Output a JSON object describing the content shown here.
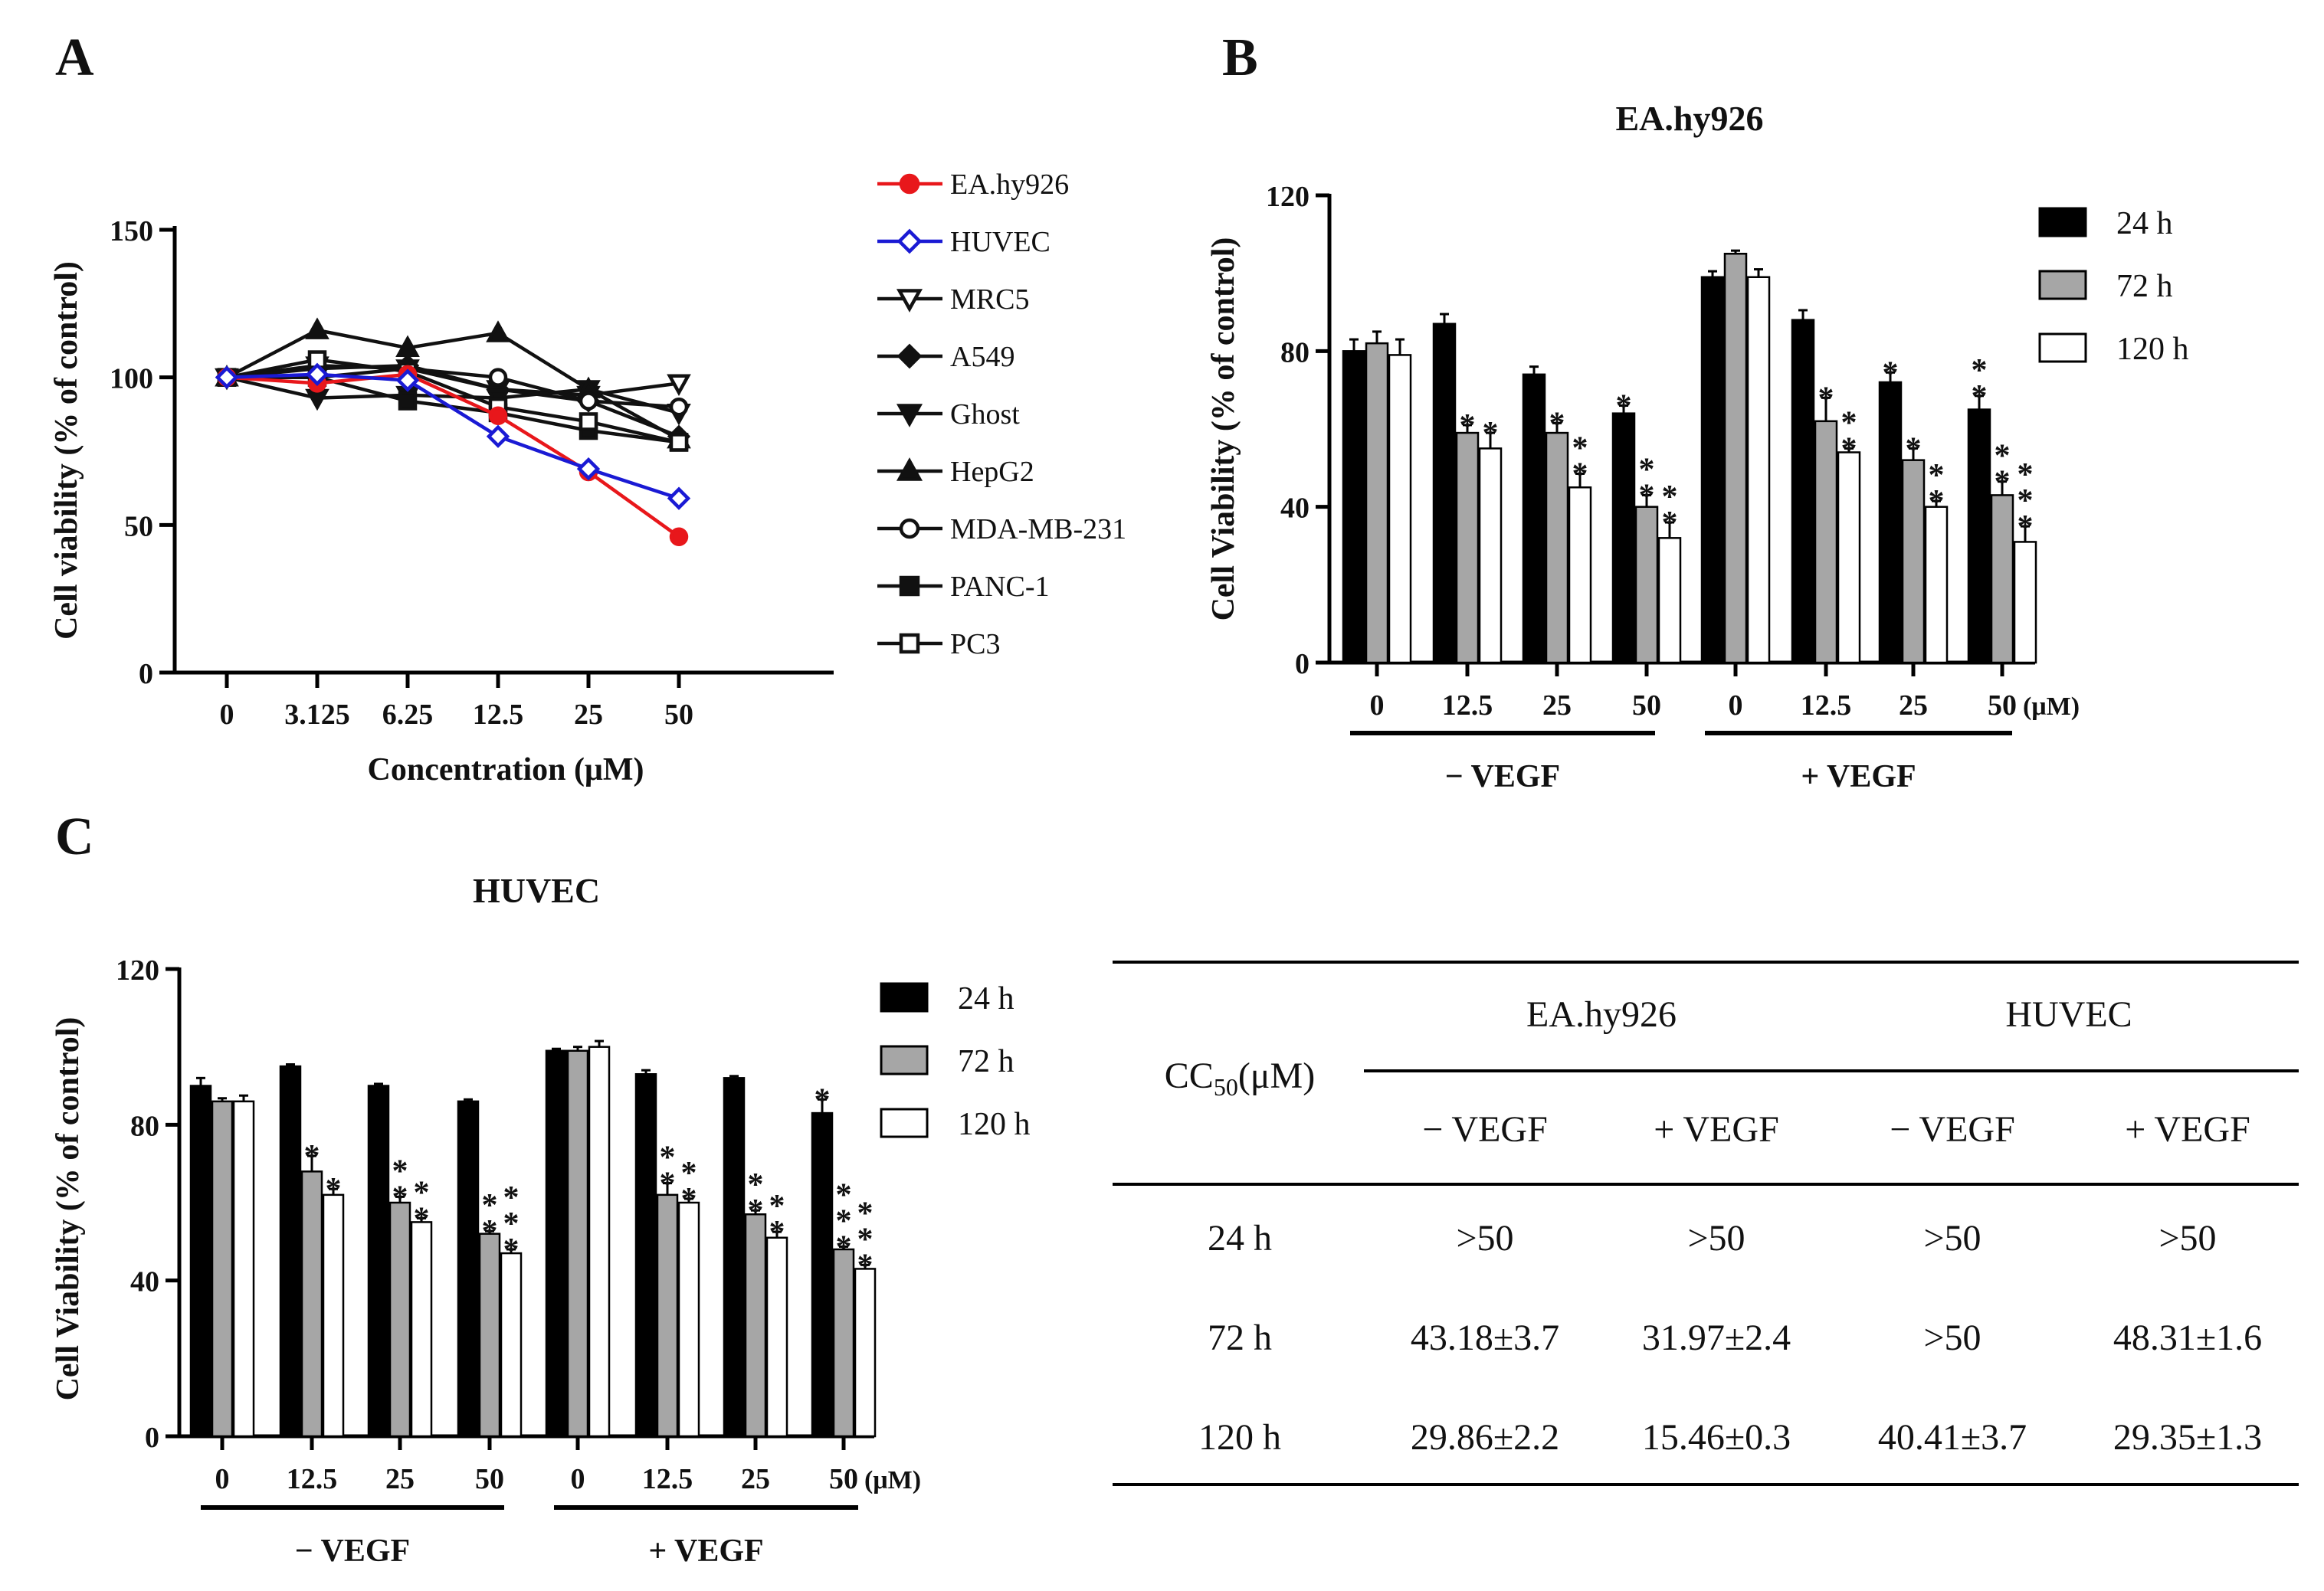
{
  "panels": {
    "A": "A",
    "B": "B",
    "C": "C"
  },
  "chart_data": [
    {
      "id": "A",
      "type": "line",
      "ylabel": "Cell viability (% of control)",
      "xlabel": "Concentration (μM)",
      "categories": [
        "0",
        "3.125",
        "6.25",
        "12.5",
        "25",
        "50"
      ],
      "ylim": [
        0,
        150
      ],
      "yticks": [
        0,
        50,
        100,
        150
      ],
      "series": [
        {
          "name": "EA.hy926",
          "marker": "circle",
          "color": "#e8171b",
          "values": [
            100,
            98,
            101,
            87,
            68,
            46
          ]
        },
        {
          "name": "HUVEC",
          "marker": "diamond-open",
          "color": "#1a1ad4",
          "values": [
            100,
            101,
            99,
            80,
            69,
            59
          ]
        },
        {
          "name": "MRC5",
          "marker": "triangle-down-open",
          "color": "#111111",
          "values": [
            100,
            104,
            103,
            96,
            94,
            98
          ]
        },
        {
          "name": "A549",
          "marker": "diamond",
          "color": "#111111",
          "values": [
            100,
            103,
            104,
            96,
            92,
            80
          ]
        },
        {
          "name": "Ghost",
          "marker": "triangle-down",
          "color": "#111111",
          "values": [
            100,
            93,
            94,
            93,
            96,
            88
          ]
        },
        {
          "name": "HepG2",
          "marker": "triangle",
          "color": "#111111",
          "values": [
            100,
            116,
            110,
            115,
            96,
            79
          ]
        },
        {
          "name": "MDA-MB-231",
          "marker": "circle-open",
          "color": "#111111",
          "values": [
            100,
            100,
            103,
            100,
            92,
            90
          ]
        },
        {
          "name": "PANC-1",
          "marker": "square",
          "color": "#111111",
          "values": [
            100,
            100,
            92,
            88,
            82,
            78
          ]
        },
        {
          "name": "PC3",
          "marker": "square-open",
          "color": "#111111",
          "values": [
            100,
            106,
            102,
            90,
            85,
            78
          ]
        }
      ]
    },
    {
      "id": "B",
      "type": "bar",
      "title": "EA.hy926",
      "ylabel": "Cell Viability (% of control)",
      "ylim": [
        0,
        120
      ],
      "yticks": [
        0,
        40,
        80,
        120
      ],
      "unit_label": "(μM)",
      "categories": [
        "0",
        "12.5",
        "25",
        "50",
        "0",
        "12.5",
        "25",
        "50"
      ],
      "groups": [
        {
          "label": "− VEGF"
        },
        {
          "label": "+ VEGF"
        }
      ],
      "series": [
        {
          "name": "24 h",
          "fill": "#000000",
          "values": [
            80,
            87,
            74,
            64,
            99,
            88,
            72,
            65
          ],
          "errors": [
            3,
            2.5,
            2,
            2,
            1.5,
            2.5,
            2.5,
            3.5
          ],
          "stars": [
            "",
            "",
            "",
            "*",
            "",
            "",
            "*",
            "**"
          ]
        },
        {
          "name": "72 h",
          "fill": "#a6a6a6",
          "values": [
            82,
            59,
            59,
            40,
            105,
            62,
            52,
            43
          ],
          "errors": [
            3,
            2,
            2.5,
            3,
            0.8,
            6,
            3,
            3.5
          ],
          "stars": [
            "",
            "*",
            "*",
            "**",
            "",
            "*",
            "*",
            "**"
          ]
        },
        {
          "name": "120 h",
          "fill": "#ffffff",
          "values": [
            79,
            55,
            45,
            32,
            99,
            54,
            40,
            31
          ],
          "errors": [
            4,
            4,
            3.5,
            4,
            2,
            1,
            1.5,
            4
          ],
          "stars": [
            "",
            "*",
            "**",
            "**",
            "",
            "**",
            "**",
            "***"
          ]
        }
      ]
    },
    {
      "id": "C",
      "type": "bar",
      "title": "HUVEC",
      "ylabel": "Cell Viability (% of control)",
      "ylim": [
        0,
        120
      ],
      "yticks": [
        0,
        40,
        80,
        120
      ],
      "unit_label": "(μM)",
      "categories": [
        "0",
        "12.5",
        "25",
        "50",
        "0",
        "12.5",
        "25",
        "50"
      ],
      "groups": [
        {
          "label": "− VEGF"
        },
        {
          "label": "+ VEGF"
        }
      ],
      "series": [
        {
          "name": "24 h",
          "fill": "#000000",
          "values": [
            90,
            95,
            90,
            86,
            99,
            93,
            92,
            83
          ],
          "errors": [
            2,
            0.5,
            0.5,
            0.5,
            0.5,
            1,
            0.5,
            3.5
          ],
          "stars": [
            "",
            "",
            "",
            "",
            "",
            "",
            "",
            "*"
          ]
        },
        {
          "name": "72 h",
          "fill": "#a6a6a6",
          "values": [
            86,
            68,
            60,
            52,
            99,
            62,
            57,
            48
          ],
          "errors": [
            0.8,
            4,
            1.5,
            0.7,
            1,
            3,
            1,
            0.7
          ],
          "stars": [
            "",
            "*",
            "**",
            "**",
            "",
            "**",
            "**",
            "***"
          ]
        },
        {
          "name": "120 h",
          "fill": "#ffffff",
          "values": [
            86,
            62,
            55,
            47,
            100,
            60,
            51,
            43
          ],
          "errors": [
            1.5,
            1.5,
            1,
            1,
            1.5,
            1,
            1.5,
            1
          ],
          "stars": [
            "",
            "*",
            "**",
            "***",
            "",
            "**",
            "**",
            "***"
          ]
        }
      ]
    },
    {
      "id": "table",
      "type": "table",
      "header_label": "CC50(μM)",
      "cell_lines": [
        "EA.hy926",
        "HUVEC"
      ],
      "conditions": [
        "− VEGF",
        "+ VEGF",
        "− VEGF",
        "+ VEGF"
      ],
      "rows": [
        {
          "time": "24 h",
          "values": [
            ">50",
            ">50",
            ">50",
            ">50"
          ]
        },
        {
          "time": "72 h",
          "values": [
            "43.18±3.7",
            "31.97±2.4",
            ">50",
            "48.31±1.6"
          ]
        },
        {
          "time": "120 h",
          "values": [
            "29.86±2.2",
            "15.46±0.3",
            "40.41±3.7",
            "29.35±1.3"
          ]
        }
      ]
    }
  ]
}
